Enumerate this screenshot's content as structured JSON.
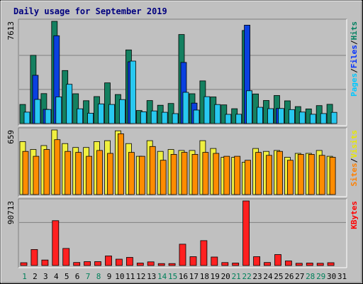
{
  "chart_data": {
    "type": "bar",
    "title": "Daily usage for September 2019",
    "days": [
      "1",
      "2",
      "3",
      "4",
      "5",
      "6",
      "7",
      "8",
      "9",
      "10",
      "11",
      "12",
      "13",
      "14",
      "15",
      "16",
      "17",
      "18",
      "19",
      "20",
      "21",
      "22",
      "23",
      "24",
      "25",
      "26",
      "27",
      "28",
      "29",
      "30",
      "31"
    ],
    "weekend_days": [
      "1",
      "7",
      "8",
      "14",
      "15",
      "21",
      "22",
      "28",
      "29"
    ],
    "panels": [
      {
        "max_label": "7613",
        "ymax": 7613,
        "legend": [
          {
            "text": "Pages",
            "color": "#00c8ff"
          },
          {
            "text": "/",
            "color": "#000000"
          },
          {
            "text": "Files",
            "color": "#0030ff"
          },
          {
            "text": "/",
            "color": "#000000"
          },
          {
            "text": "Hits",
            "color": "#008060"
          }
        ],
        "series": [
          {
            "name": "Hits",
            "color": "#148060",
            "values": [
              1420,
              5080,
              2230,
              7613,
              3950,
              2220,
              1700,
              2010,
              3030,
              2160,
              5480,
              975,
              1715,
              1365,
              1495,
              6630,
              2220,
              3180,
              1985,
              1390,
              1105,
              6930,
              2205,
              1720,
              2090,
              1690,
              1265,
              1090,
              1340,
              1435,
              0
            ]
          },
          {
            "name": "Files",
            "color": "#0a40e0",
            "values": [
              0,
              3595,
              1060,
              6540,
              0,
              0,
              0,
              0,
              0,
              0,
              4600,
              0,
              0,
              0,
              0,
              4550,
              1525,
              0,
              0,
              0,
              0,
              7330,
              0,
              0,
              1120,
              0,
              0,
              0,
              0,
              0,
              0
            ]
          },
          {
            "name": "Pages",
            "color": "#28c8f0",
            "values": [
              850,
              1800,
              1045,
              1990,
              2925,
              1100,
              770,
              1465,
              1420,
              1785,
              4650,
              880,
              940,
              840,
              740,
              2325,
              1005,
              2005,
              1415,
              685,
              690,
              2445,
              1210,
              1110,
              1120,
              1040,
              855,
              695,
              745,
              835,
              0
            ]
          }
        ]
      },
      {
        "max_label": "659",
        "ymax": 659,
        "legend": [
          {
            "text": "Sites",
            "color": "#ff8000"
          },
          {
            "text": "/",
            "color": "#000000"
          },
          {
            "text": "Visits",
            "color": "#e8e800"
          }
        ],
        "series": [
          {
            "name": "Visits",
            "color": "#f0f040",
            "values": [
              540,
              460,
              500,
              659,
              520,
              480,
              480,
              540,
              550,
              650,
              520,
              390,
              550,
              440,
              460,
              450,
              450,
              550,
              470,
              380,
              380,
              330,
              470,
              440,
              450,
              380,
              420,
              420,
              450,
              390,
              0
            ]
          },
          {
            "name": "Sites",
            "color": "#ff8c00",
            "values": [
              440,
              390,
              460,
              560,
              440,
              430,
              390,
              450,
              420,
              620,
              430,
              390,
              490,
              350,
              410,
              430,
              410,
              430,
              420,
              390,
              390,
              350,
              430,
              400,
              440,
              350,
              410,
              410,
              400,
              380,
              0
            ]
          }
        ]
      },
      {
        "max_label": "90713",
        "ymax": 90713,
        "legend": [
          {
            "text": "KBytes",
            "color": "#ff0000"
          }
        ],
        "series": [
          {
            "name": "KBytes",
            "color": "#ff2020",
            "values": [
              4000,
              22500,
              7800,
              63000,
              24000,
              4300,
              5500,
              5500,
              13500,
              9000,
              11500,
              3500,
              5200,
              2800,
              2800,
              30000,
              12500,
              35000,
              12000,
              4200,
              3500,
              90713,
              12500,
              4300,
              15500,
              6500,
              3200,
              3500,
              3200,
              4000,
              0
            ]
          }
        ]
      }
    ]
  }
}
